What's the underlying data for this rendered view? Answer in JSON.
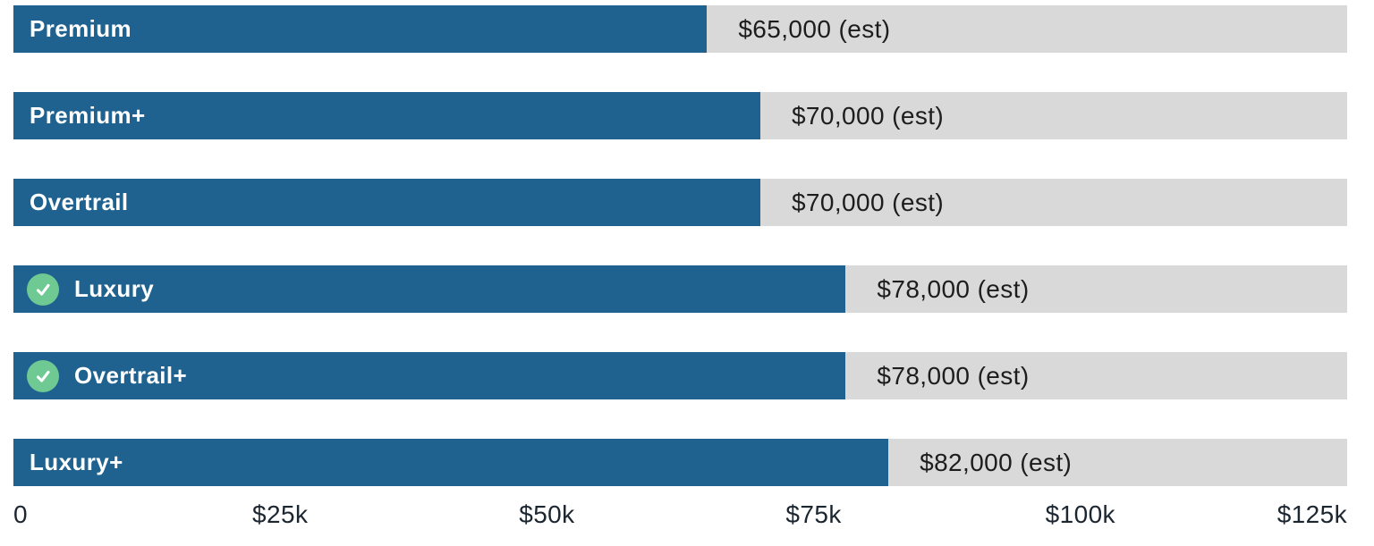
{
  "chart_data": {
    "type": "bar",
    "orientation": "horizontal",
    "title": "",
    "xlabel": "",
    "ylabel": "",
    "categories": [
      "Premium",
      "Premium+",
      "Overtrail",
      "Luxury",
      "Overtrail+",
      "Luxury+"
    ],
    "values": [
      65000,
      70000,
      70000,
      78000,
      78000,
      82000
    ],
    "value_labels": [
      "$65,000 (est)",
      "$70,000 (est)",
      "$70,000 (est)",
      "$78,000 (est)",
      "$78,000 (est)",
      "$82,000 (est)"
    ],
    "checked": [
      false,
      false,
      false,
      true,
      true,
      false
    ],
    "xlim": [
      0,
      125000
    ],
    "x_ticks": [
      0,
      25000,
      50000,
      75000,
      100000,
      125000
    ],
    "x_tick_labels": [
      "0",
      "$25k",
      "$50k",
      "$75k",
      "$100k",
      "$125k"
    ],
    "grid": false,
    "legend": false
  },
  "colors": {
    "bar_fill": "#20628f",
    "track": "#d9d9d9",
    "bar_label_text": "#ffffff",
    "price_text": "#1d1d1d",
    "axis_text": "#1c2630",
    "check_circle": "#6fc992",
    "check_mark": "#ffffff",
    "background": "#ffffff"
  },
  "icons": {
    "check": "checkmark-icon"
  }
}
